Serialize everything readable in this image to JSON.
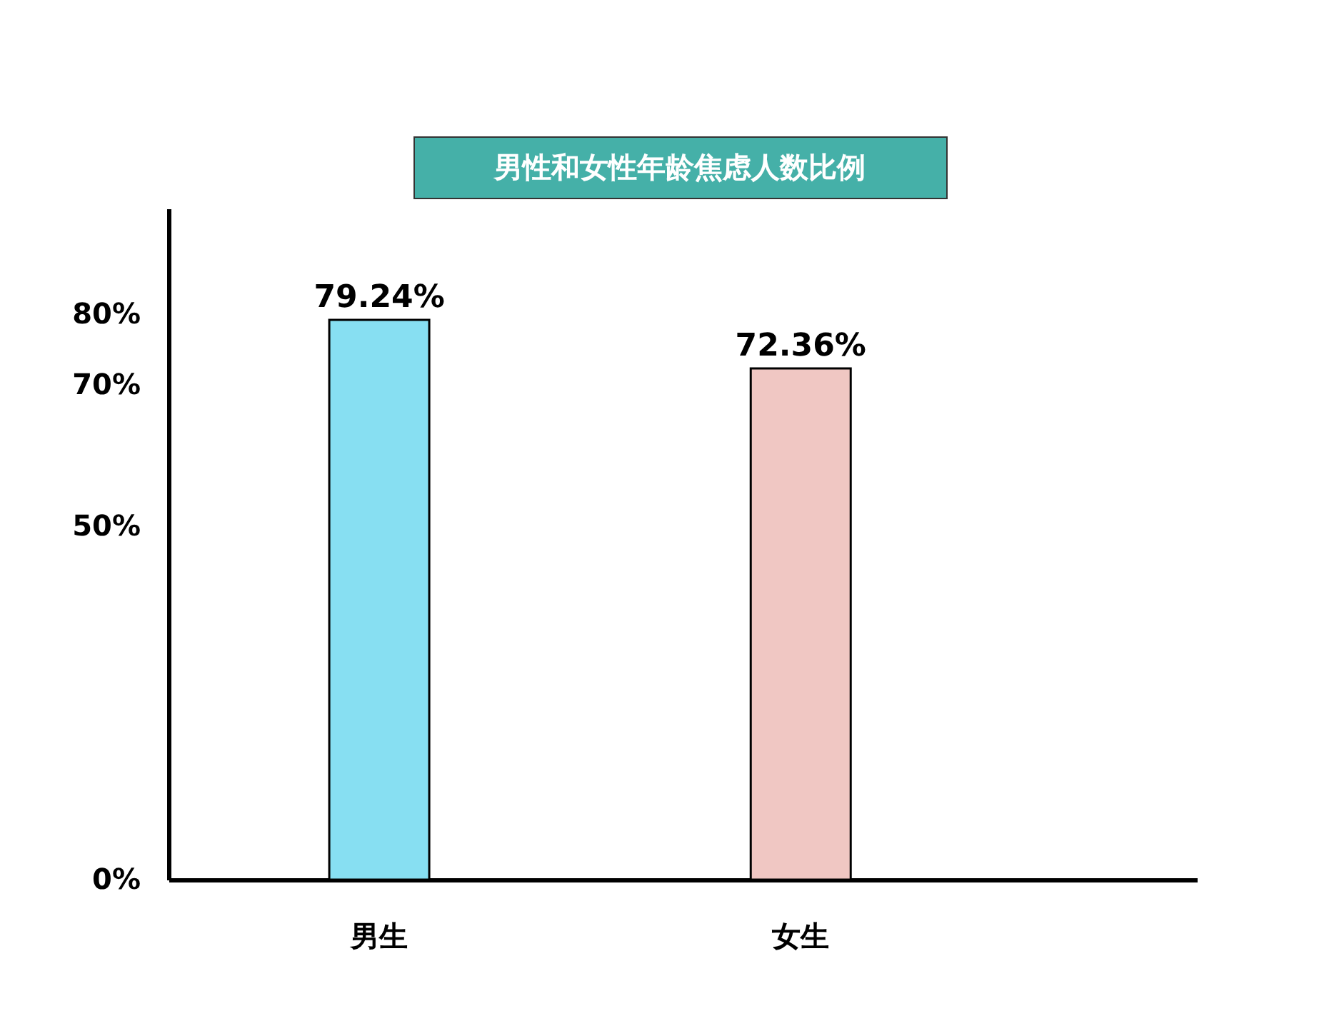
{
  "chart_data": {
    "type": "bar",
    "title": "男性和女性年龄焦虑人数比例",
    "categories": [
      "男生",
      "女生"
    ],
    "values": [
      79.24,
      72.36
    ],
    "colors": [
      "#87dff2",
      "#f0c7c3"
    ],
    "value_labels": [
      "79.24%",
      "72.36%"
    ],
    "ylim": [
      0,
      95
    ],
    "yticks": [
      {
        "value": 0,
        "label": "0%"
      },
      {
        "value": 50,
        "label": "50%"
      },
      {
        "value": 70,
        "label": "70%"
      },
      {
        "value": 80,
        "label": "80%"
      }
    ],
    "grid": false,
    "legend": false
  }
}
